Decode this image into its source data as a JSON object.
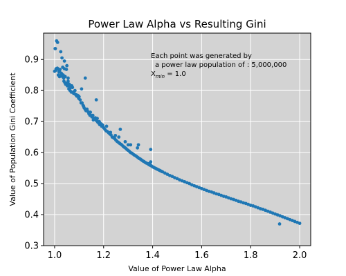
{
  "chart_data": {
    "type": "scatter",
    "title": "Power Law Alpha vs Resulting Gini",
    "xlabel": "Value of Power Law Alpha",
    "ylabel": "Value of Population Gini Coefficient",
    "xlim": [
      0.955,
      2.045
    ],
    "ylim": [
      0.3,
      0.985
    ],
    "xticks": [
      1.0,
      1.2,
      1.4,
      1.6,
      1.8,
      2.0
    ],
    "xtick_labels": [
      "1.0",
      "1.2",
      "1.4",
      "1.6",
      "1.8",
      "2.0"
    ],
    "yticks": [
      0.3,
      0.4,
      0.5,
      0.6,
      0.7,
      0.8,
      0.9
    ],
    "ytick_labels": [
      "0.3",
      "0.4",
      "0.5",
      "0.6",
      "0.7",
      "0.8",
      "0.9"
    ],
    "grid": true,
    "legend": "none",
    "colors": {
      "background": "#d3d3d3",
      "grid": "#ffffff",
      "points": "#1f77b4"
    },
    "annotation": {
      "line1": "Each point was generated by",
      "line2": "a power law population of : 5,000,000",
      "line3_var": "X",
      "line3_sub": "min",
      "line3_rest": " = 1.0"
    },
    "series": [
      {
        "x": [
          1.0,
          1.002,
          1.005,
          1.008,
          1.01,
          1.012,
          1.015,
          1.018,
          1.02,
          1.022,
          1.025,
          1.028,
          1.03,
          1.032,
          1.035,
          1.038,
          1.04,
          1.042,
          1.045,
          1.048,
          1.05,
          1.052,
          1.055,
          1.058,
          1.06,
          1.063,
          1.066,
          1.07,
          1.073,
          1.076,
          1.08,
          1.083,
          1.086,
          1.09,
          1.093,
          1.096,
          1.1,
          1.104,
          1.108,
          1.112,
          1.116,
          1.12,
          1.124,
          1.128,
          1.132,
          1.136,
          1.14,
          1.144,
          1.148,
          1.152,
          1.156,
          1.16,
          1.164,
          1.168,
          1.172,
          1.176,
          1.18,
          1.184,
          1.188,
          1.192,
          1.196,
          1.2,
          1.205,
          1.21,
          1.215,
          1.22,
          1.225,
          1.23,
          1.235,
          1.24,
          1.245,
          1.25,
          1.255,
          1.26,
          1.265,
          1.27,
          1.275,
          1.28,
          1.285,
          1.29,
          1.295,
          1.3,
          1.305,
          1.31,
          1.315,
          1.32,
          1.325,
          1.33,
          1.335,
          1.34,
          1.345,
          1.35,
          1.355,
          1.36,
          1.365,
          1.37,
          1.375,
          1.38,
          1.385,
          1.39,
          1.395,
          1.4,
          1.405,
          1.41,
          1.415,
          1.42,
          1.425,
          1.43,
          1.435,
          1.44,
          1.45,
          1.46,
          1.47,
          1.48,
          1.49,
          1.5,
          1.51,
          1.52,
          1.53,
          1.54,
          1.55,
          1.56,
          1.57,
          1.58,
          1.59,
          1.6,
          1.61,
          1.62,
          1.63,
          1.64,
          1.65,
          1.66,
          1.67,
          1.68,
          1.69,
          1.7,
          1.71,
          1.72,
          1.73,
          1.74,
          1.75,
          1.76,
          1.77,
          1.78,
          1.79,
          1.8,
          1.81,
          1.82,
          1.83,
          1.84,
          1.85,
          1.86,
          1.87,
          1.88,
          1.89,
          1.9,
          1.91,
          1.92,
          1.93,
          1.94,
          1.95,
          1.96,
          1.97,
          1.98,
          1.99,
          2.0,
          1.003,
          1.006,
          1.011,
          1.017,
          1.021,
          1.027,
          1.033,
          1.037,
          1.043,
          1.049,
          1.054,
          1.062,
          1.068,
          1.078,
          1.088,
          1.098,
          1.118,
          1.126,
          1.138,
          1.146,
          1.158,
          1.166,
          1.174,
          1.182,
          1.186,
          1.194,
          1.212,
          1.228,
          1.248,
          1.262,
          1.268,
          1.288,
          1.3,
          1.31,
          1.338,
          1.342,
          1.388,
          1.392,
          1.392,
          1.918,
          1.125,
          1.04,
          1.055,
          1.11,
          1.17
        ],
        "y": [
          0.862,
          0.935,
          0.865,
          0.96,
          0.87,
          0.955,
          0.85,
          0.86,
          0.845,
          0.868,
          0.925,
          0.855,
          0.905,
          0.845,
          0.85,
          0.83,
          0.87,
          0.825,
          0.82,
          0.868,
          0.88,
          0.815,
          0.83,
          0.805,
          0.82,
          0.8,
          0.81,
          0.815,
          0.81,
          0.795,
          0.79,
          0.8,
          0.787,
          0.782,
          0.785,
          0.783,
          0.78,
          0.77,
          0.76,
          0.76,
          0.752,
          0.745,
          0.74,
          0.735,
          0.74,
          0.732,
          0.725,
          0.72,
          0.72,
          0.715,
          0.72,
          0.71,
          0.71,
          0.705,
          0.702,
          0.698,
          0.695,
          0.69,
          0.69,
          0.685,
          0.688,
          0.68,
          0.675,
          0.67,
          0.668,
          0.664,
          0.66,
          0.657,
          0.65,
          0.648,
          0.645,
          0.64,
          0.636,
          0.633,
          0.63,
          0.627,
          0.624,
          0.62,
          0.617,
          0.614,
          0.61,
          0.607,
          0.604,
          0.6,
          0.598,
          0.595,
          0.592,
          0.59,
          0.587,
          0.584,
          0.581,
          0.579,
          0.576,
          0.573,
          0.571,
          0.568,
          0.566,
          0.564,
          0.561,
          0.559,
          0.557,
          0.554,
          0.552,
          0.55,
          0.548,
          0.546,
          0.544,
          0.542,
          0.54,
          0.538,
          0.534,
          0.53,
          0.526,
          0.523,
          0.519,
          0.516,
          0.512,
          0.509,
          0.506,
          0.503,
          0.5,
          0.496,
          0.493,
          0.49,
          0.487,
          0.484,
          0.481,
          0.478,
          0.475,
          0.473,
          0.47,
          0.467,
          0.465,
          0.462,
          0.459,
          0.457,
          0.454,
          0.451,
          0.449,
          0.446,
          0.443,
          0.441,
          0.438,
          0.436,
          0.433,
          0.43,
          0.428,
          0.425,
          0.422,
          0.419,
          0.417,
          0.414,
          0.411,
          0.408,
          0.405,
          0.402,
          0.399,
          0.396,
          0.393,
          0.39,
          0.387,
          0.384,
          0.381,
          0.378,
          0.375,
          0.372,
          0.935,
          0.87,
          0.872,
          0.868,
          0.86,
          0.85,
          0.875,
          0.84,
          0.845,
          0.82,
          0.825,
          0.81,
          0.795,
          0.79,
          0.785,
          0.775,
          0.75,
          0.738,
          0.73,
          0.73,
          0.705,
          0.712,
          0.71,
          0.7,
          0.695,
          0.69,
          0.685,
          0.665,
          0.655,
          0.65,
          0.675,
          0.635,
          0.625,
          0.625,
          0.615,
          0.625,
          0.565,
          0.61,
          0.57,
          0.37,
          0.84,
          0.895,
          0.84,
          0.805,
          0.77
        ]
      }
    ]
  }
}
